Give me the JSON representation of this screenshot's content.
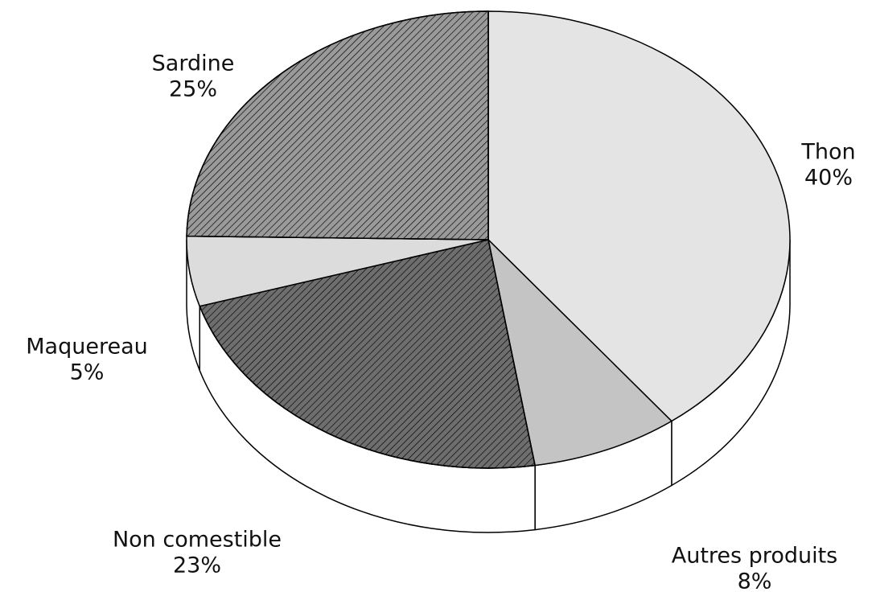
{
  "chart_data": {
    "type": "pie3d",
    "categories": [
      "Thon",
      "Autres produits",
      "Non comestible",
      "Maquereau",
      "Sardine"
    ],
    "values": [
      40,
      8,
      23,
      5,
      25
    ],
    "value_labels": [
      "40%",
      "8%",
      "23%",
      "5%",
      "25%"
    ],
    "colors": [
      "#e4e4e4",
      "#c4c4c4",
      "#6e6e6e",
      "#dcdcdc",
      "#9a9a9a"
    ]
  }
}
